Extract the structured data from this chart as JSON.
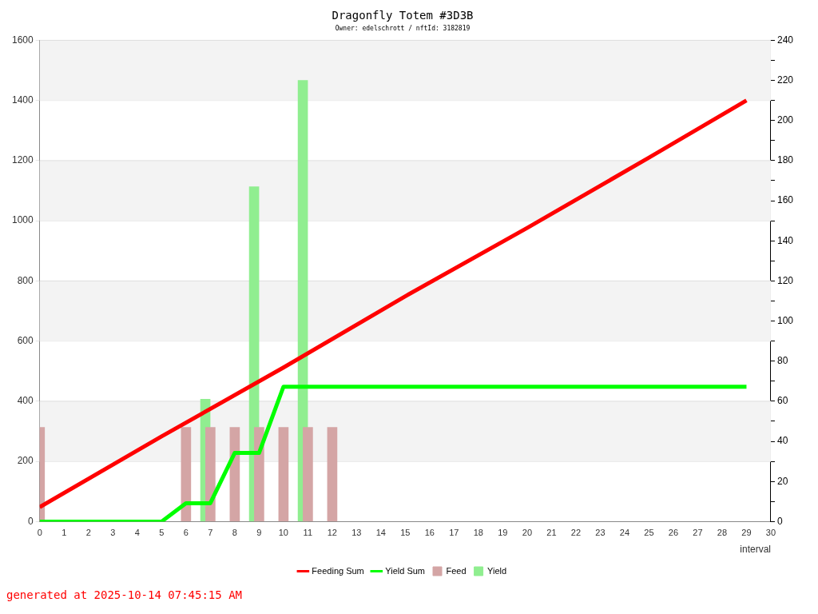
{
  "chart_data": {
    "type": "line",
    "title": "Dragonfly Totem #3D3B",
    "subtitle": "Owner: edelschrott / nftId: 3182819",
    "xlabel": "interval",
    "annotations": [
      "generated at 2025-10-14 07:45:15 AM"
    ],
    "xlim": [
      0,
      30
    ],
    "xticks": [
      0,
      1,
      2,
      3,
      4,
      5,
      6,
      7,
      8,
      9,
      10,
      11,
      12,
      13,
      14,
      15,
      16,
      17,
      18,
      19,
      20,
      21,
      22,
      23,
      24,
      25,
      26,
      27,
      28,
      29,
      30
    ],
    "ylim": [
      0,
      1600
    ],
    "yticks": [
      0,
      200,
      400,
      600,
      800,
      1000,
      1200,
      1400,
      1600
    ],
    "y2lim": [
      0,
      240
    ],
    "y2ticks": [
      0,
      {
        "value": 10,
        "label": null
      },
      20,
      {
        "value": 30,
        "label": null
      },
      40,
      {
        "value": 50,
        "label": null
      },
      60,
      {
        "value": 70,
        "label": null
      },
      80,
      {
        "value": 90,
        "label": null
      },
      100,
      {
        "value": 110,
        "label": null
      },
      120,
      {
        "value": 130,
        "label": null
      },
      140,
      {
        "value": 150,
        "label": null
      },
      160,
      {
        "value": 170,
        "label": null
      },
      180,
      {
        "value": 190,
        "label": null
      },
      200,
      {
        "value": 210,
        "label": null
      },
      220,
      {
        "value": 230,
        "label": null
      },
      240
    ],
    "grid": "y",
    "legend": "bottom",
    "marker": "none",
    "line_style": "solid",
    "series": [
      {
        "name": "Feeding Sum",
        "color": "#ff0000",
        "x": [
          0,
          5,
          10,
          15,
          20,
          25,
          29
        ],
        "values": [
          48,
          283,
          512,
          749,
          976,
          1210,
          1400
        ]
      },
      {
        "name": "Yield Sum",
        "color": "#00ff00",
        "x": [
          0,
          5,
          6,
          7,
          8,
          9,
          10,
          29
        ],
        "values": [
          0,
          0,
          61,
          61,
          228,
          228,
          448,
          448
        ]
      },
      {
        "name": "Feed",
        "type": "bar",
        "axis": "y2",
        "color": "#d4a5a5",
        "x": [
          0.2,
          6.2,
          7.2,
          8.2,
          9.2,
          10.2,
          11.2,
          12.2
        ],
        "values": [
          47,
          47,
          47,
          47,
          47,
          47,
          47,
          47
        ]
      },
      {
        "name": "Yield",
        "type": "bar",
        "axis": "y2",
        "color": "#90ee90",
        "x": [
          6.6,
          8.6,
          10.6
        ],
        "values": [
          61,
          167,
          220
        ]
      }
    ]
  }
}
